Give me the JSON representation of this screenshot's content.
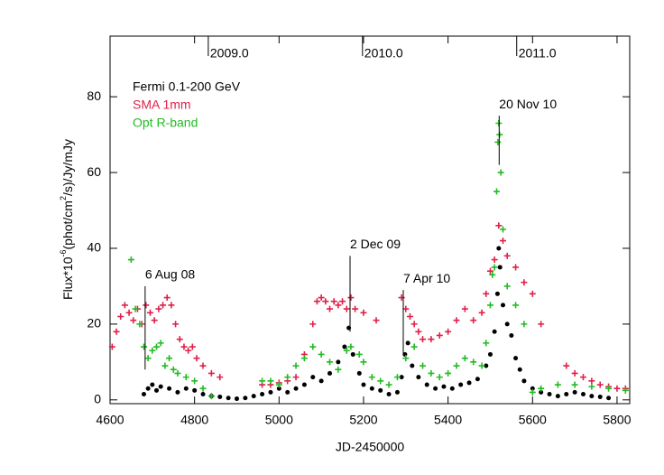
{
  "chart_data": {
    "type": "scatter",
    "xlabel": "JD-2450000",
    "ylabel": [
      "Flux*10",
      "-6",
      "(phot/cm",
      "2",
      "/s)/Jy/mJy"
    ],
    "xlim": [
      4600,
      5830
    ],
    "ylim": [
      -1,
      96
    ],
    "xticks": [
      4600,
      4800,
      5000,
      5200,
      5400,
      5600,
      5800
    ],
    "yticks": [
      0,
      20,
      40,
      60,
      80
    ],
    "x2ticks": [
      {
        "value": 4832.5,
        "label": "2009.0"
      },
      {
        "value": 5197.5,
        "label": "2010.0"
      },
      {
        "value": 5562.5,
        "label": "2011.0"
      }
    ],
    "legend": "upper left",
    "series": [
      {
        "name": "Fermi 0.1-200 GeV",
        "color": "#000000",
        "marker": "dot",
        "x": [
          4680,
          4690,
          4700,
          4710,
          4720,
          4740,
          4760,
          4780,
          4800,
          4820,
          4840,
          4860,
          4880,
          4900,
          4920,
          4940,
          4960,
          4980,
          5000,
          5020,
          5040,
          5060,
          5080,
          5100,
          5120,
          5140,
          5155,
          5165,
          5175,
          5190,
          5200,
          5220,
          5240,
          5260,
          5280,
          5290,
          5298,
          5305,
          5315,
          5330,
          5350,
          5370,
          5390,
          5410,
          5430,
          5450,
          5470,
          5490,
          5500,
          5510,
          5517,
          5520,
          5523,
          5530,
          5540,
          5550,
          5560,
          5570,
          5580,
          5600,
          5620,
          5640,
          5660,
          5680,
          5700,
          5720,
          5740,
          5760,
          5780
        ],
        "values": [
          1.5,
          3,
          4,
          2.5,
          3.5,
          3,
          2,
          3,
          2.5,
          1.5,
          1,
          0.8,
          0.5,
          0.3,
          0.5,
          1,
          1.5,
          2,
          3,
          2,
          3,
          4,
          6,
          5,
          7,
          10,
          14,
          19,
          12,
          7,
          4,
          3,
          2.5,
          1.5,
          2,
          6,
          12,
          15,
          9,
          6,
          4,
          3,
          3.5,
          3,
          4,
          4.5,
          5.5,
          9,
          12,
          18,
          28,
          40,
          35,
          25,
          20,
          17,
          11,
          8,
          5,
          3,
          2,
          1.5,
          1,
          1.5,
          2,
          1.5,
          1,
          0.8,
          0.5
        ]
      },
      {
        "name": "SMA 1mm",
        "color": "#e0204a",
        "marker": "plus",
        "x": [
          4605,
          4615,
          4625,
          4635,
          4645,
          4655,
          4665,
          4675,
          4685,
          4695,
          4705,
          4715,
          4725,
          4735,
          4745,
          4755,
          4765,
          4775,
          4785,
          4795,
          4805,
          4820,
          4840,
          4860,
          4960,
          4980,
          5000,
          5020,
          5040,
          5060,
          5080,
          5090,
          5100,
          5110,
          5120,
          5130,
          5140,
          5150,
          5160,
          5170,
          5180,
          5200,
          5230,
          5290,
          5300,
          5310,
          5320,
          5330,
          5340,
          5360,
          5380,
          5400,
          5420,
          5440,
          5460,
          5480,
          5490,
          5500,
          5510,
          5520,
          5530,
          5540,
          5560,
          5580,
          5600,
          5620,
          5680,
          5700,
          5720,
          5740,
          5760,
          5780,
          5800,
          5820
        ],
        "values": [
          14,
          18,
          22,
          25,
          23,
          21,
          24,
          20,
          25,
          23,
          21,
          24,
          25,
          27,
          25,
          20,
          16,
          14,
          13,
          14,
          11,
          9,
          7,
          6,
          4,
          4,
          4.5,
          5,
          6,
          12,
          20,
          26,
          27,
          26,
          24,
          26,
          25,
          26,
          24,
          27,
          24,
          23,
          21,
          27,
          24,
          22,
          20,
          18,
          16,
          16,
          17,
          18,
          21,
          24,
          21,
          23,
          28,
          34,
          37,
          46,
          42,
          38,
          35,
          31,
          28,
          20,
          9,
          7,
          6,
          5,
          4,
          3.5,
          3,
          3
        ]
      },
      {
        "name": "Opt R-band",
        "color": "#22bb22",
        "marker": "plus",
        "x": [
          4650,
          4660,
          4670,
          4680,
          4690,
          4700,
          4710,
          4720,
          4730,
          4740,
          4750,
          4760,
          4780,
          4800,
          4820,
          4840,
          4960,
          4980,
          5000,
          5020,
          5040,
          5060,
          5080,
          5100,
          5120,
          5140,
          5160,
          5170,
          5190,
          5200,
          5220,
          5240,
          5260,
          5280,
          5300,
          5320,
          5340,
          5360,
          5380,
          5400,
          5420,
          5440,
          5460,
          5480,
          5490,
          5500,
          5505,
          5510,
          5515,
          5518,
          5520,
          5522,
          5525,
          5530,
          5540,
          5560,
          5580,
          5600,
          5620,
          5660,
          5700,
          5740,
          5780,
          5820
        ],
        "values": [
          37,
          24,
          20,
          14,
          11,
          13,
          14,
          15,
          9,
          11,
          8,
          7,
          6,
          5,
          3,
          1,
          5,
          5,
          4,
          6,
          9,
          11,
          14,
          12,
          10,
          8,
          13,
          14,
          12,
          10,
          6,
          5,
          4,
          6,
          11,
          14,
          9,
          7,
          6,
          7,
          9,
          11,
          10,
          9,
          15,
          25,
          33,
          35,
          55,
          68,
          73,
          70,
          60,
          45,
          30,
          25,
          20,
          2,
          3,
          4,
          4,
          3.5,
          3,
          2.5
        ]
      }
    ],
    "annotations": [
      {
        "text": "6 Aug 08",
        "x": 4683,
        "y1": 8,
        "y2": 30
      },
      {
        "text": "2 Dec 09",
        "x": 5168,
        "y1": 18,
        "y2": 38
      },
      {
        "text": "7 Apr 10",
        "x": 5294,
        "y1": 12,
        "y2": 29
      },
      {
        "text": "20 Nov 10",
        "x": 5521,
        "y1": 62,
        "y2": 75
      }
    ]
  }
}
